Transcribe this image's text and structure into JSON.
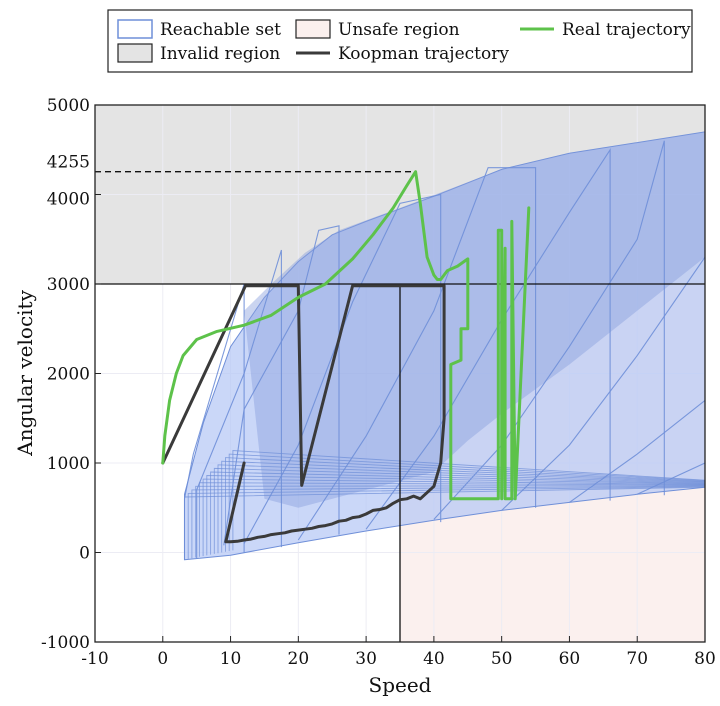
{
  "chart_data": {
    "type": "line",
    "xlabel": "Speed",
    "ylabel": "Angular velocity",
    "xlim": [
      -10,
      80
    ],
    "ylim": [
      -1000,
      5000
    ],
    "xticks": [
      -10,
      0,
      10,
      20,
      30,
      40,
      50,
      60,
      70,
      80
    ],
    "yticks": [
      -1000,
      0,
      1000,
      2000,
      3000,
      4000,
      4255,
      5000
    ],
    "grid": true,
    "legend": {
      "placement": "top",
      "entries": [
        {
          "label": "Reachable set",
          "kind": "patch-outline",
          "color": "#6f8fd8"
        },
        {
          "label": "Invalid region",
          "kind": "patch",
          "color": "#e4e4e4"
        },
        {
          "label": "Unsafe region",
          "kind": "patch",
          "color": "#fbf0ee"
        },
        {
          "label": "Koopman trajectory",
          "kind": "line",
          "color": "#3a3a3a"
        },
        {
          "label": "Real trajectory",
          "kind": "line",
          "color": "#5dc24a"
        }
      ]
    },
    "regions": {
      "invalid": {
        "x": [
          -10,
          80
        ],
        "y": [
          3000,
          5000
        ],
        "color": "#e4e4e4"
      },
      "unsafe": {
        "x": [
          35,
          80
        ],
        "y": [
          -1000,
          3000
        ],
        "color": "#fbf0ee"
      }
    },
    "reference_lines": {
      "hline_3000": 3000,
      "vline_35": 35,
      "dashed_hline": {
        "y": 4255,
        "x_end": 37.5
      }
    },
    "reachable_set": {
      "color": "#6f8fd8",
      "fill": "#b6c8f5",
      "dark_fill": "#8a9fde",
      "envelope": [
        [
          3.2,
          -80
        ],
        [
          10,
          -30
        ],
        [
          20,
          110
        ],
        [
          30,
          240
        ],
        [
          40,
          360
        ],
        [
          50,
          470
        ],
        [
          60,
          560
        ],
        [
          70,
          650
        ],
        [
          80,
          730
        ],
        [
          80,
          4700
        ],
        [
          70,
          4580
        ],
        [
          60,
          4460
        ],
        [
          50,
          4280
        ],
        [
          40,
          3980
        ],
        [
          30,
          3700
        ],
        [
          25,
          3550
        ],
        [
          20,
          3250
        ],
        [
          15,
          2850
        ],
        [
          10,
          2300
        ],
        [
          6,
          1450
        ],
        [
          3.2,
          650
        ]
      ],
      "upper_dark_band": [
        [
          12,
          2700
        ],
        [
          16,
          3000
        ],
        [
          21,
          3350
        ],
        [
          26,
          3600
        ],
        [
          35,
          3850
        ],
        [
          50,
          4280
        ],
        [
          60,
          4460
        ],
        [
          70,
          4580
        ],
        [
          80,
          4700
        ],
        [
          80,
          3300
        ],
        [
          70,
          2700
        ],
        [
          60,
          2100
        ],
        [
          50,
          1550
        ],
        [
          45,
          1250
        ],
        [
          40,
          900
        ],
        [
          30,
          700
        ],
        [
          20,
          500
        ],
        [
          15,
          600
        ]
      ],
      "sets": [
        [
          [
            3.2,
            -80
          ],
          [
            3.2,
            600
          ],
          [
            4.5,
            1100
          ],
          [
            12,
            3000
          ],
          [
            12,
            0
          ]
        ],
        [
          [
            5,
            -70
          ],
          [
            5,
            700
          ],
          [
            12,
            2000
          ],
          [
            17.5,
            3380
          ],
          [
            17.5,
            60
          ]
        ],
        [
          [
            9,
            80
          ],
          [
            12,
            1600
          ],
          [
            20,
            2700
          ],
          [
            23,
            3600
          ],
          [
            26,
            3650
          ],
          [
            26,
            200
          ]
        ],
        [
          [
            12,
            100
          ],
          [
            20,
            1200
          ],
          [
            28,
            2800
          ],
          [
            35,
            3900
          ],
          [
            41,
            4000
          ],
          [
            41,
            340
          ]
        ],
        [
          [
            20,
            140
          ],
          [
            30,
            1300
          ],
          [
            40,
            2700
          ],
          [
            48,
            4300
          ],
          [
            55,
            4300
          ],
          [
            55,
            500
          ]
        ],
        [
          [
            30,
            260
          ],
          [
            40,
            1300
          ],
          [
            50,
            2600
          ],
          [
            60,
            3800
          ],
          [
            66,
            4500
          ],
          [
            66,
            580
          ]
        ],
        [
          [
            40,
            370
          ],
          [
            50,
            1200
          ],
          [
            60,
            2300
          ],
          [
            70,
            3500
          ],
          [
            74,
            4600
          ],
          [
            74,
            640
          ]
        ],
        [
          [
            50,
            470
          ],
          [
            60,
            1200
          ],
          [
            70,
            2200
          ],
          [
            80,
            3300
          ]
        ],
        [
          [
            60,
            560
          ],
          [
            70,
            1100
          ],
          [
            80,
            1700
          ]
        ],
        [
          [
            70,
            650
          ],
          [
            80,
            1000
          ]
        ]
      ]
    },
    "series": [
      {
        "name": "Koopman trajectory",
        "color": "#3a3a3a",
        "x": [
          0,
          12.2,
          15.5,
          20,
          20.5,
          28,
          28,
          29,
          29.5,
          41.5,
          41.5,
          41,
          40,
          38,
          37,
          36,
          35,
          34,
          33,
          32,
          31,
          30,
          29,
          28,
          27,
          26,
          25,
          24,
          23,
          22,
          21,
          20,
          19,
          18,
          17,
          16,
          15,
          14,
          13,
          12,
          11,
          10,
          9.3,
          12
        ],
        "y": [
          1000,
          2980,
          2980,
          2980,
          750,
          2980,
          2980,
          2980,
          2980,
          2980,
          1500,
          1000,
          740,
          600,
          630,
          600,
          590,
          550,
          500,
          480,
          470,
          430,
          400,
          390,
          360,
          350,
          320,
          300,
          290,
          270,
          260,
          250,
          240,
          220,
          210,
          200,
          180,
          170,
          150,
          140,
          125,
          120,
          120,
          1000
        ]
      },
      {
        "name": "Real trajectory",
        "color": "#5dc24a",
        "x": [
          0,
          0.3,
          1,
          2,
          3,
          5,
          8,
          12,
          16,
          20,
          24,
          28,
          31,
          34,
          36,
          37.3,
          38,
          39,
          40,
          40.5,
          41,
          42,
          43.5,
          45,
          45,
          44,
          44,
          42.5,
          42.5,
          42.5,
          49.5,
          49.5,
          50,
          50,
          50.5,
          50.5,
          51.5,
          51.5,
          52,
          54
        ],
        "y": [
          1000,
          1300,
          1700,
          2000,
          2200,
          2380,
          2470,
          2540,
          2650,
          2850,
          3000,
          3280,
          3550,
          3850,
          4100,
          4255,
          3900,
          3300,
          3100,
          3050,
          3050,
          3150,
          3200,
          3280,
          2500,
          2500,
          2150,
          2100,
          1500,
          600,
          600,
          3600,
          3600,
          600,
          3400,
          600,
          600,
          3700,
          600,
          3850
        ]
      }
    ]
  }
}
